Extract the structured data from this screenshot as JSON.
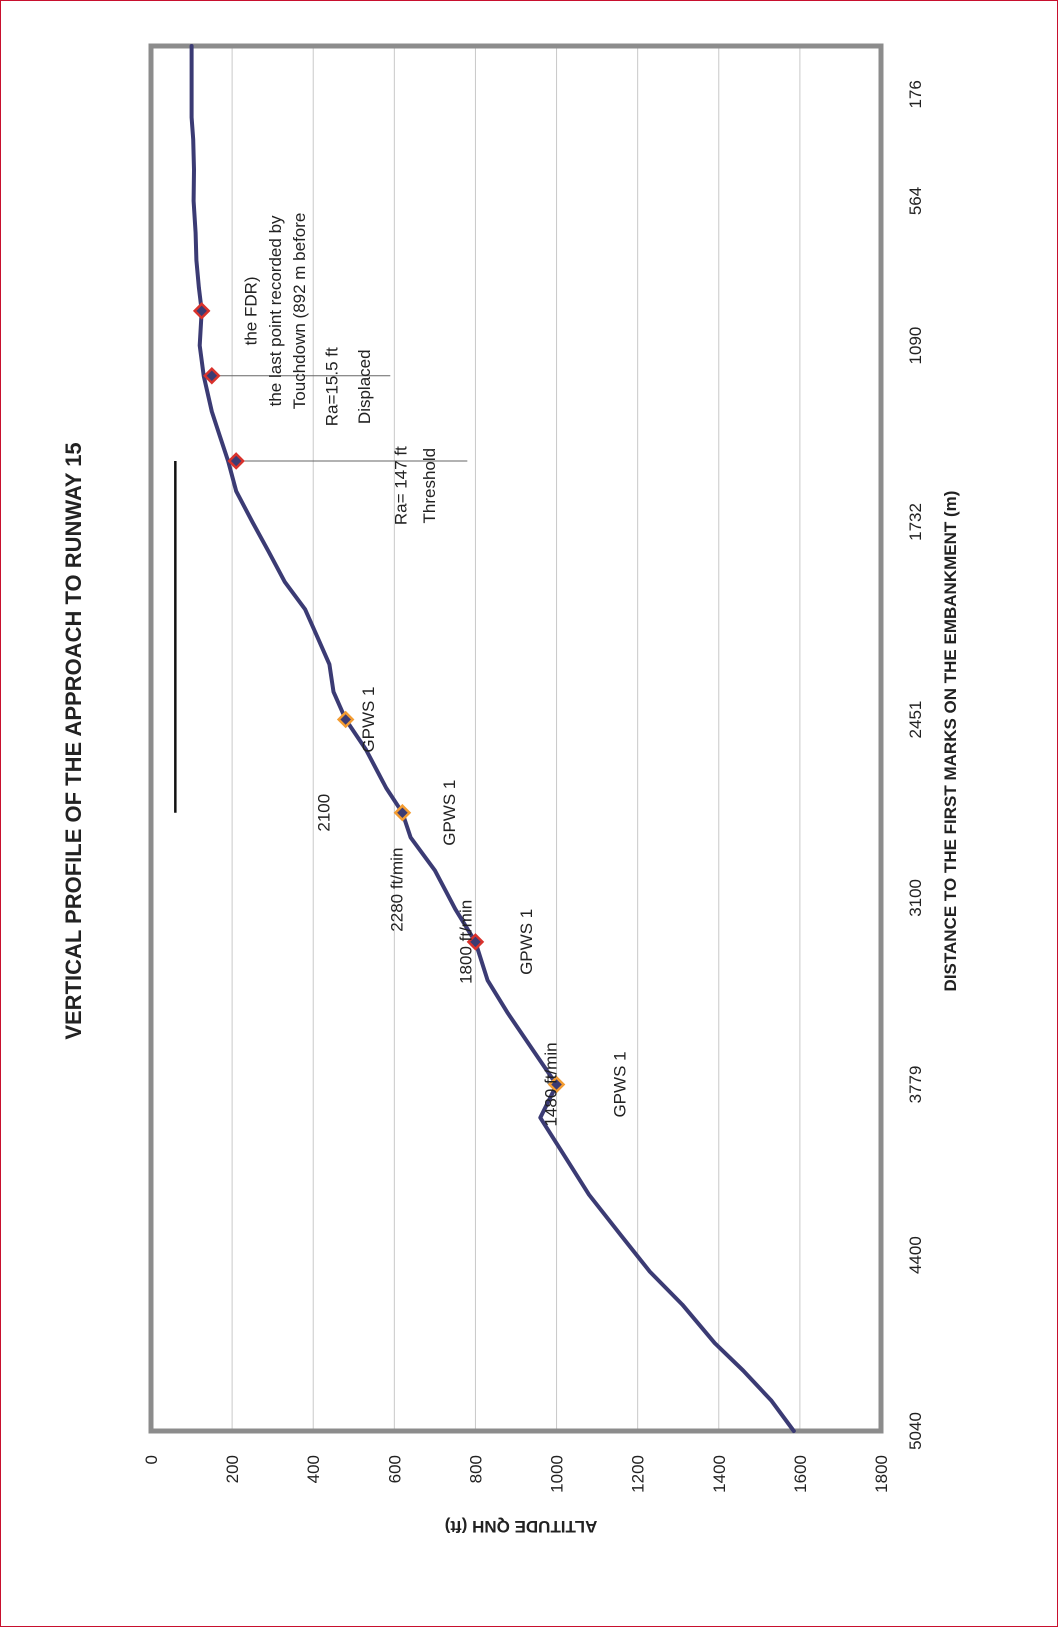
{
  "chart_data": {
    "type": "line",
    "title": "VERTICAL PROFILE OF THE APPROACH TO RUNWAY 15",
    "xlabel": "DISTANCE TO THE FIRST MARKS ON THE EMBANKMENT (m)",
    "ylabel": "ALTITUDE QNH (ft)",
    "xlim": [
      5040,
      0
    ],
    "ylim": [
      0,
      1800
    ],
    "x_ticks": [
      "5040",
      "4400",
      "3779",
      "3100",
      "2451",
      "1732",
      "1090",
      "564",
      "176"
    ],
    "y_ticks": [
      "0",
      "200",
      "400",
      "600",
      "800",
      "1000",
      "1200",
      "1400",
      "1600",
      "1800"
    ],
    "grid": true,
    "orientation": "rotated-90-ccw",
    "series": [
      {
        "points": [
          [
            5040,
            1585
          ],
          [
            4930,
            1530
          ],
          [
            4820,
            1460
          ],
          [
            4720,
            1390
          ],
          [
            4580,
            1310
          ],
          [
            4460,
            1230
          ],
          [
            4330,
            1160
          ],
          [
            4180,
            1080
          ],
          [
            4040,
            1020
          ],
          [
            3900,
            960
          ],
          [
            3780,
            1000
          ],
          [
            3650,
            940
          ],
          [
            3520,
            880
          ],
          [
            3400,
            830
          ],
          [
            3260,
            800
          ],
          [
            3140,
            750
          ],
          [
            3000,
            700
          ],
          [
            2880,
            640
          ],
          [
            2790,
            620
          ],
          [
            2700,
            580
          ],
          [
            2560,
            530
          ],
          [
            2451,
            480
          ],
          [
            2350,
            450
          ],
          [
            2250,
            440
          ],
          [
            2150,
            410
          ],
          [
            2050,
            380
          ],
          [
            1950,
            330
          ],
          [
            1840,
            290
          ],
          [
            1732,
            250
          ],
          [
            1620,
            210
          ],
          [
            1510,
            190
          ],
          [
            1420,
            170
          ],
          [
            1330,
            150
          ],
          [
            1200,
            130
          ],
          [
            1090,
            120
          ],
          [
            964,
            125
          ],
          [
            880,
            118
          ],
          [
            780,
            112
          ],
          [
            680,
            110
          ],
          [
            564,
            105
          ],
          [
            450,
            106
          ],
          [
            340,
            104
          ],
          [
            260,
            100
          ],
          [
            176,
            100
          ],
          [
            100,
            100
          ],
          [
            0,
            100
          ]
        ]
      }
    ],
    "markers": [
      {
        "x": 3779,
        "y": 1000,
        "style": "orange"
      },
      {
        "x": 3260,
        "y": 800,
        "style": "red"
      },
      {
        "x": 2790,
        "y": 620,
        "style": "orange"
      },
      {
        "x": 2451,
        "y": 480,
        "style": "orange"
      },
      {
        "x": 1510,
        "y": 210,
        "style": "red"
      },
      {
        "x": 1200,
        "y": 150,
        "style": "red"
      },
      {
        "x": 964,
        "y": 125,
        "style": "red"
      }
    ],
    "annotations": [
      {
        "text": "GPWS 1",
        "x": 3779,
        "y": 1170
      },
      {
        "text": "1480 ft/min",
        "x": 3779,
        "y": 1000
      },
      {
        "text": "GPWS 1",
        "x": 3260,
        "y": 940
      },
      {
        "text": "1800 ft/min",
        "x": 3260,
        "y": 790
      },
      {
        "text": "GPWS 1",
        "x": 2790,
        "y": 750
      },
      {
        "text": "2280 ft/min",
        "x": 3070,
        "y": 620
      },
      {
        "text": "GPWS 1",
        "x": 2451,
        "y": 550
      },
      {
        "text": "2100",
        "x": 2790,
        "y": 440
      },
      {
        "text": "Threshold",
        "x": 1600,
        "y": 700
      },
      {
        "text": "Ra= 147 ft",
        "x": 1600,
        "y": 630
      },
      {
        "text": "Displaced",
        "x": 1240,
        "y": 540
      },
      {
        "text": "Ra=15.5 ft",
        "x": 1240,
        "y": 460
      },
      {
        "text": "Touchdown (892 m before",
        "x": 964,
        "y": 380
      },
      {
        "text": "the last point recorded by",
        "x": 964,
        "y": 320
      },
      {
        "text": "the FDR)",
        "x": 964,
        "y": 260
      }
    ],
    "callout_lines": [
      {
        "x": 1510,
        "y_from": 780,
        "y_to": 200
      },
      {
        "x": 1200,
        "y_from": 590,
        "y_to": 140
      }
    ],
    "runway": {
      "x_from": 1510,
      "x_to": 0,
      "y_from": 60,
      "y_to": 105
    },
    "runway_line": {
      "x_from": 2790,
      "x_to": 1510,
      "y": 60
    },
    "colors": {
      "line": "#3b3b74",
      "grid": "#c8c8c8",
      "frame": "#8c8c8c",
      "marker_orange": "#f39c32",
      "marker_red": "#d9322c",
      "marker_core": "#3b3b74",
      "border": "#c8102e"
    }
  }
}
